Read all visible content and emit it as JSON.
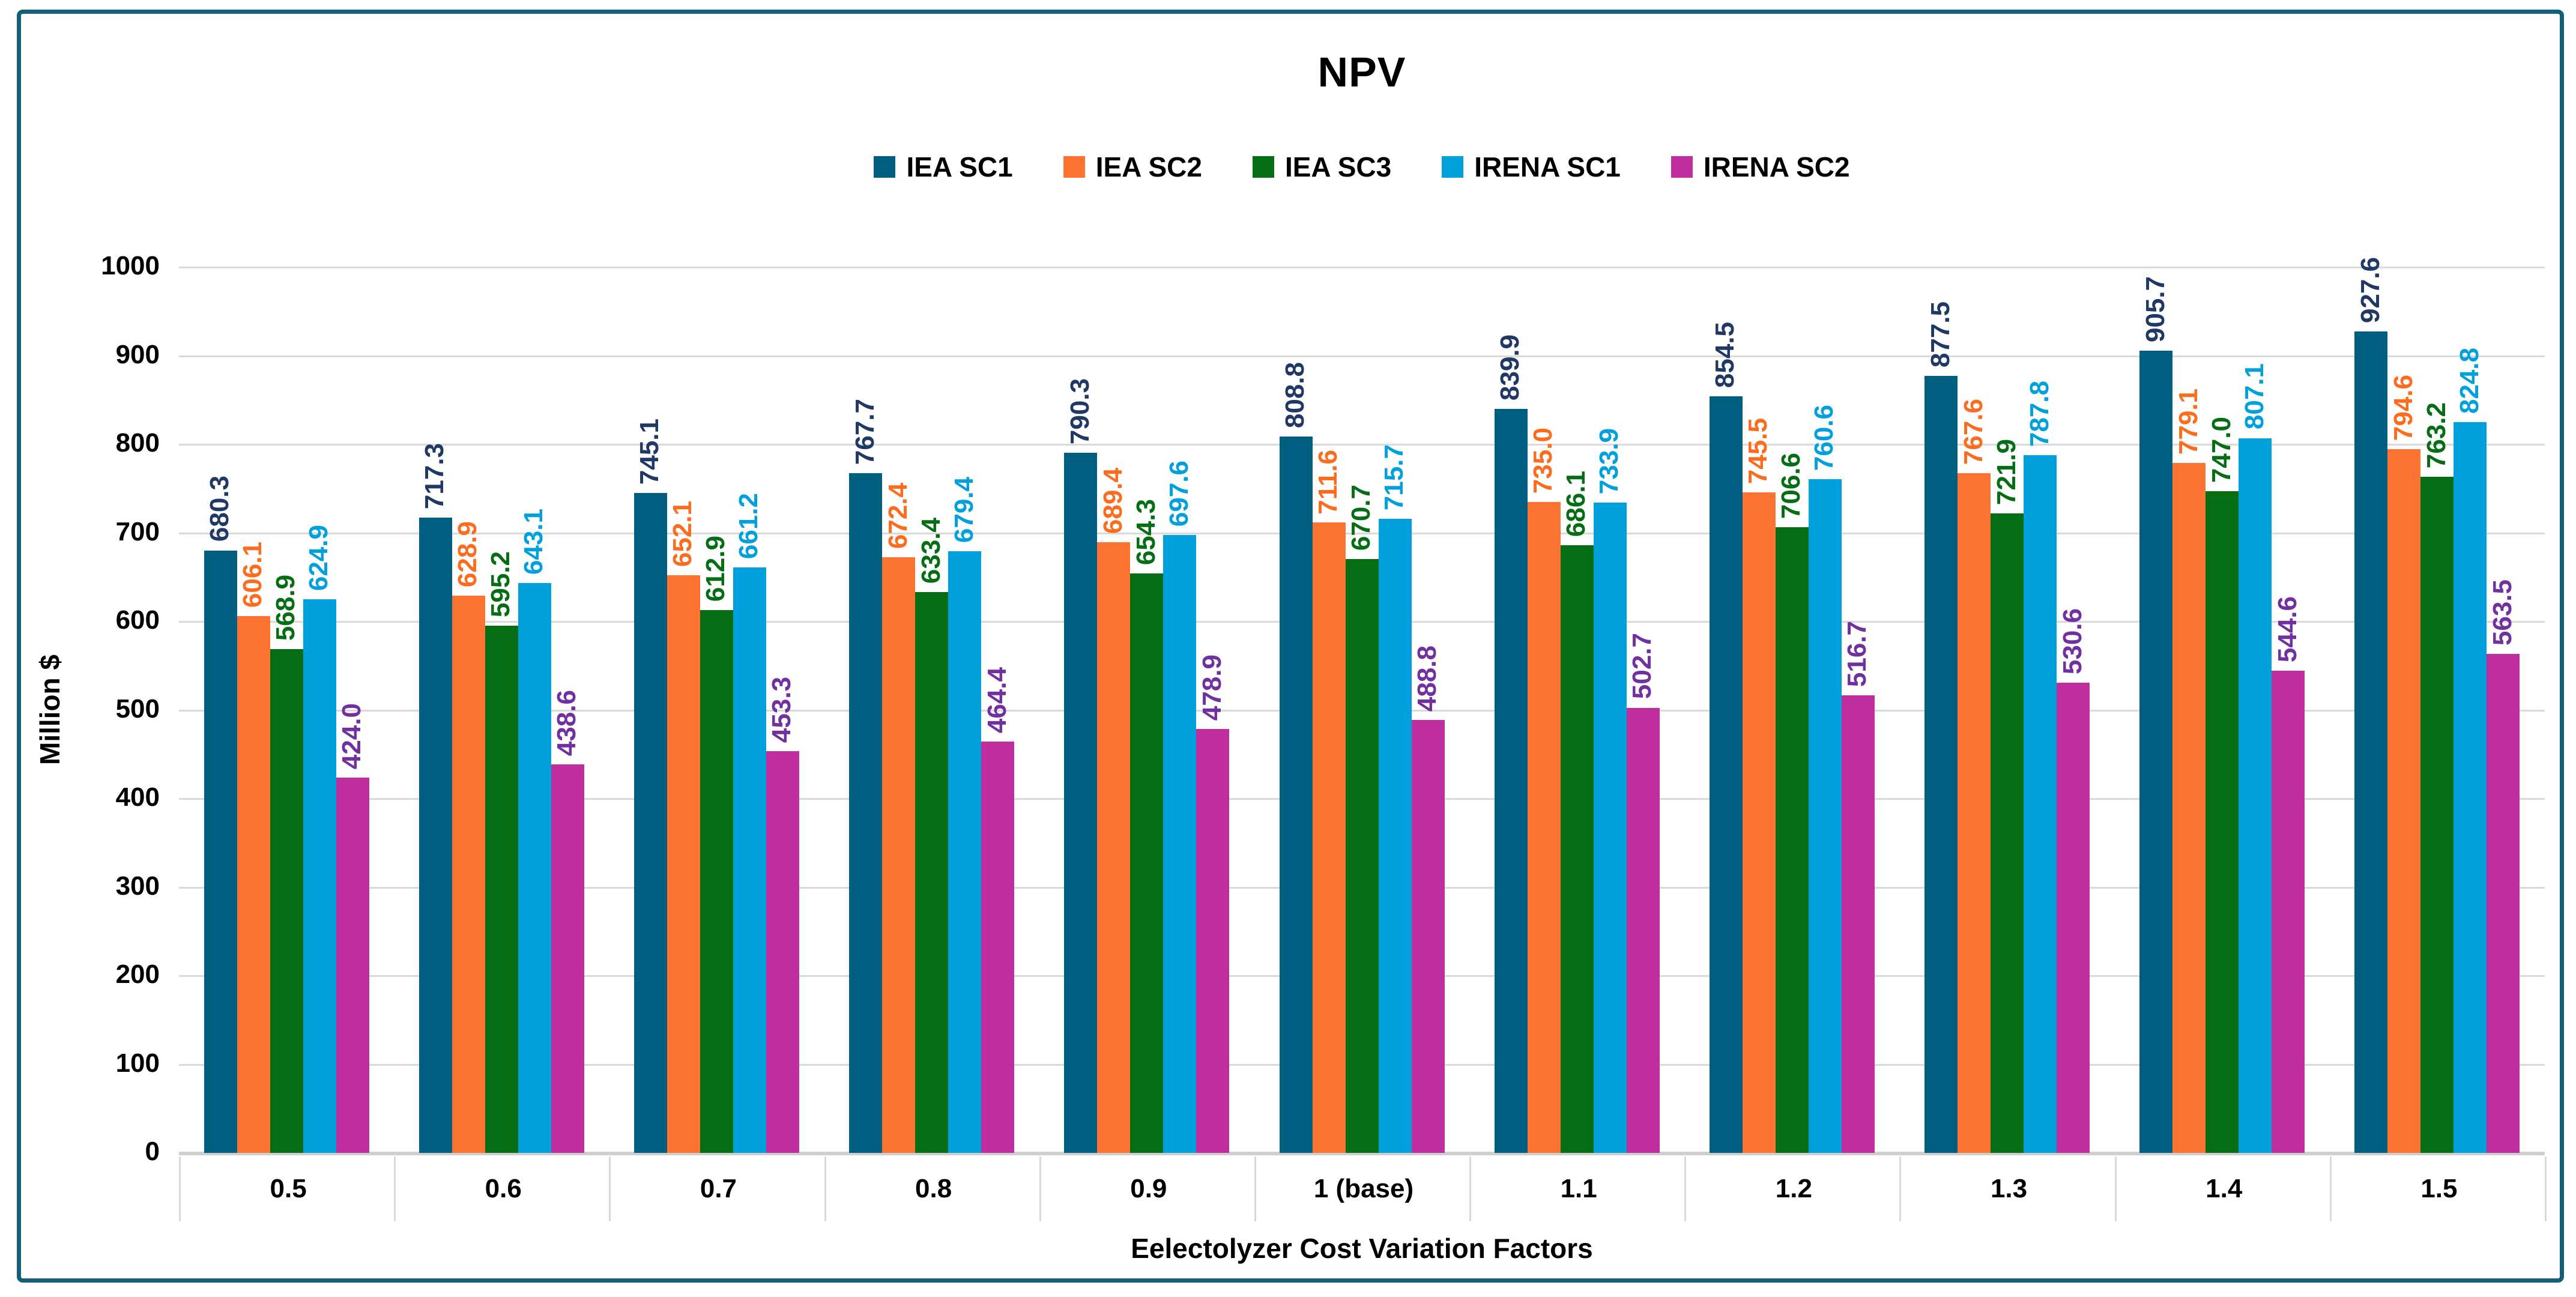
{
  "chart_data": {
    "type": "bar",
    "title": "NPV",
    "xlabel": "Eelectolyzer Cost Variation Factors",
    "ylabel": "Million $",
    "ylim": [
      0,
      1000
    ],
    "ytick_step": 100,
    "yticks": [
      0,
      100,
      200,
      300,
      400,
      500,
      600,
      700,
      800,
      900,
      1000
    ],
    "grid": true,
    "legend_position": "top",
    "value_label_format": "one-decimal-rotated-90",
    "categories": [
      "0.5",
      "0.6",
      "0.7",
      "0.8",
      "0.9",
      "1 (base)",
      "1.1",
      "1.2",
      "1.3",
      "1.4",
      "1.5"
    ],
    "series": [
      {
        "name": "IEA SC1",
        "color": "#005F81",
        "label_color": "#1F3864",
        "values": [
          680.3,
          717.3,
          745.1,
          767.7,
          790.3,
          808.8,
          839.9,
          854.5,
          877.5,
          905.7,
          927.6
        ]
      },
      {
        "name": "IEA SC2",
        "color": "#FD7332",
        "label_color": "#FB6C1F",
        "values": [
          606.1,
          628.9,
          652.1,
          672.4,
          689.4,
          711.6,
          735.0,
          745.5,
          767.6,
          779.1,
          794.6
        ]
      },
      {
        "name": "IEA SC3",
        "color": "#056D13",
        "label_color": "#056D13",
        "values": [
          568.9,
          595.2,
          612.9,
          633.4,
          654.3,
          670.7,
          686.1,
          706.6,
          721.9,
          747.0,
          763.2
        ]
      },
      {
        "name": "IRENA SC1",
        "color": "#00A0DC",
        "label_color": "#00A0DC",
        "values": [
          624.9,
          643.1,
          661.2,
          679.4,
          697.6,
          715.7,
          733.9,
          760.6,
          787.8,
          807.1,
          824.8
        ]
      },
      {
        "name": "IRENA SC2",
        "color": "#BF2D9E",
        "label_color": "#7030A0",
        "values": [
          424.0,
          438.6,
          453.3,
          464.4,
          478.9,
          488.8,
          502.7,
          516.7,
          530.6,
          544.6,
          563.5
        ]
      }
    ]
  },
  "frame_color": "#135F79",
  "gridline_color": "#D9D9D9"
}
